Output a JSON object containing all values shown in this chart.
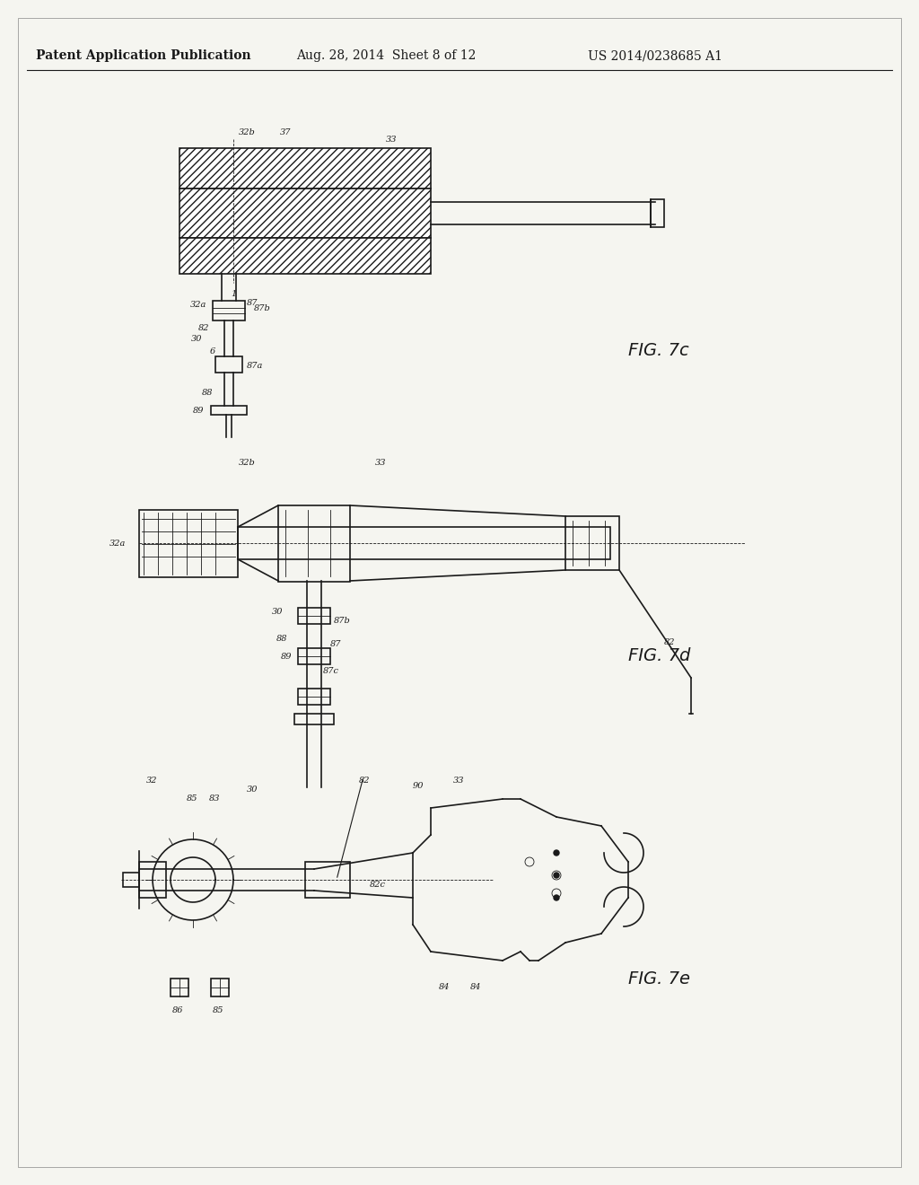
{
  "bg_color": "#f5f5f0",
  "header_text": "Patent Application Publication",
  "header_date": "Aug. 28, 2014  Sheet 8 of 12",
  "header_patent": "US 2014/0238685 A1",
  "fig_labels": [
    "FIG. 7c",
    "FIG. 7d",
    "FIG. 7e"
  ],
  "line_color": "#1a1a1a",
  "hatch_color": "#2a2a2a",
  "line_width": 1.2,
  "thin_line": 0.6
}
